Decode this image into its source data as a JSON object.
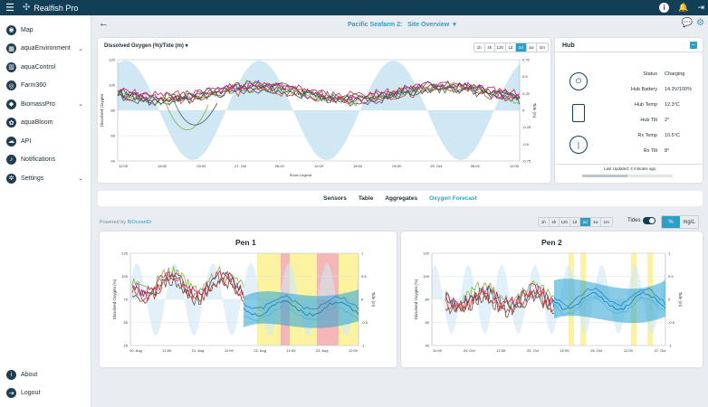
{
  "app": {
    "name": "Realfish Pro"
  },
  "sidebar": {
    "items": [
      {
        "label": "Map",
        "icon": "map-icon",
        "expandable": false
      },
      {
        "label": "aquaEnvironment",
        "icon": "environment-icon",
        "expandable": true
      },
      {
        "label": "aquaControl",
        "icon": "control-icon",
        "expandable": false
      },
      {
        "label": "Farm360",
        "icon": "farm360-icon",
        "expandable": false
      },
      {
        "label": "BiomassPro",
        "icon": "biomass-icon",
        "expandable": true
      },
      {
        "label": "aquaBloom",
        "icon": "bloom-icon",
        "expandable": false
      },
      {
        "label": "API",
        "icon": "api-icon",
        "expandable": false
      },
      {
        "label": "Notifications",
        "icon": "bell-icon",
        "expandable": false
      },
      {
        "label": "Settings",
        "icon": "gear-icon",
        "expandable": true
      }
    ],
    "bottom": [
      {
        "label": "About",
        "icon": "info-icon"
      },
      {
        "label": "Logout",
        "icon": "logout-icon"
      }
    ]
  },
  "header": {
    "site": "Pacific Seafarm 2:",
    "view": "Site Overview"
  },
  "main_chart": {
    "title": "Dissolved Oxygen (%)/Tide (m)",
    "ranges": [
      "1h",
      "4h",
      "12h",
      "1d",
      "2d",
      "1w",
      "1m"
    ],
    "active_range": "2d",
    "show_legend": "Show Legend",
    "left_ticks": [
      "120",
      "100",
      "80",
      "60",
      "40"
    ],
    "right_ticks": [
      "0.75",
      "0.5",
      "0.25",
      "0",
      "-0.25",
      "-0.5",
      "-0.75"
    ],
    "x_ticks": [
      "12:00",
      "18:00",
      "00:00",
      "27. Oct",
      "06:00",
      "12:00",
      "18:00",
      "00:00",
      "28. Oct",
      "06:00",
      "12:00"
    ],
    "ylabel": "Dissolved Oxygen",
    "y2label": "Tide (m)",
    "colors": {
      "tide_fill": "#bfe0f0",
      "series": [
        "#d81b60",
        "#c62828",
        "#7cb342",
        "#e53935",
        "#6d4c41",
        "#8e24aa",
        "#2e7d32",
        "#455a64"
      ]
    }
  },
  "hub": {
    "title": "Hub",
    "rows": [
      {
        "label": "Status",
        "value": "Charging"
      },
      {
        "label": "Hub Battery",
        "value": "14.3V/100%"
      },
      {
        "label": "Hub Temp",
        "value": "12.3°C"
      },
      {
        "label": "Hub Tilt",
        "value": "2°"
      },
      {
        "label": "Rx Temp",
        "value": "10.5°C"
      },
      {
        "label": "Rx Tilt",
        "value": "8°"
      }
    ],
    "last_updated": "Last Updated: 4 minutes ago",
    "icons": [
      "plug-icon",
      "battery-icon",
      "tilt-icon"
    ]
  },
  "tabs": {
    "items": [
      "Sensors",
      "Table",
      "Aggregates",
      "Oxygen Forecast"
    ],
    "active": "Oxygen Forecast"
  },
  "forecast": {
    "powered_by": "Powered by",
    "provider": "BiOceanDr",
    "ranges": [
      "1h",
      "4h",
      "12h",
      "1d",
      "2d",
      "1w",
      "1m"
    ],
    "active_range": "2d",
    "tides_label": "Tides",
    "units": [
      "%",
      "mg/L"
    ],
    "active_unit": "%"
  },
  "pen1": {
    "title": "Pen 1",
    "left_ticks": [
      "125",
      "100",
      "75",
      "50",
      "25"
    ],
    "right_ticks": [
      "1",
      "0.5",
      "0",
      "-0.5",
      "-1"
    ],
    "x_ticks": [
      "20. Aug",
      "12:00",
      "21. Aug",
      "12:00",
      "22. Aug",
      "12:00",
      "23. Aug",
      "12:00"
    ],
    "ylabel": "Dissolved Oxygen (%)",
    "y2label": "Tide (m)"
  },
  "pen2": {
    "title": "Pen 2",
    "left_ticks": [
      "120",
      "100",
      "80",
      "60",
      "40"
    ],
    "right_ticks": [
      "1",
      "0.5",
      "0",
      "-0.5",
      "-1"
    ],
    "x_ticks": [
      "12:00",
      "24. Oct",
      "12:00",
      "25. Oct",
      "12:00",
      "26. Oct",
      "12:00",
      "27. Oct"
    ],
    "ylabel": "Dissolved Oxygen (%)",
    "y2label": "Tide (m)"
  }
}
